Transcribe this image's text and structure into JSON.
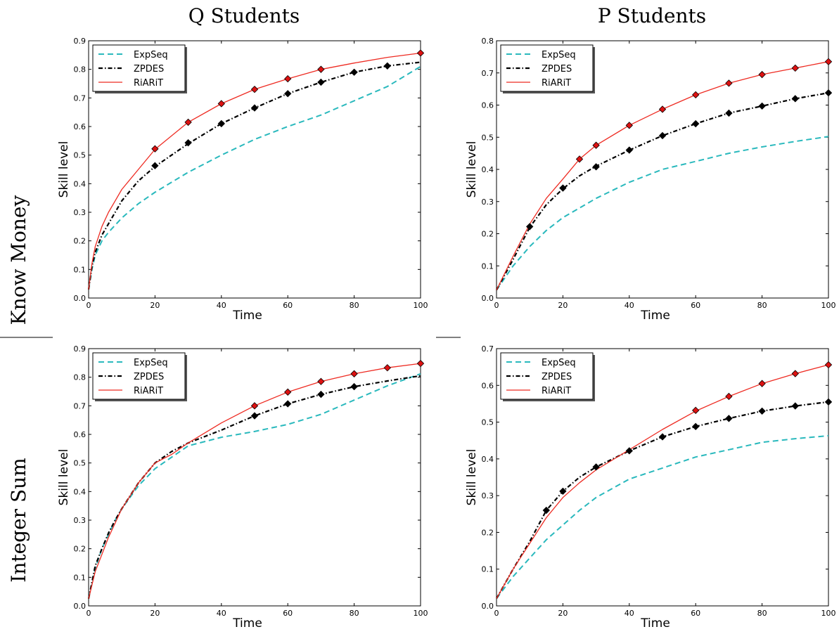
{
  "figure": {
    "column_titles": [
      "Q Students",
      "P Students"
    ],
    "row_titles": [
      "Know Money",
      "Integer Sum"
    ]
  },
  "colors": {
    "ExpSeq": "#2ab9bd",
    "ZPDES": "#000000",
    "RiARiT": "#ee2b22",
    "marker_RiARiT": "#dd1111",
    "marker_ZPDES": "#000000"
  },
  "chart_data": [
    {
      "type": "line",
      "column": "Q Students",
      "row": "Know Money",
      "xlabel": "Time",
      "ylabel": "Skill level",
      "xlim": [
        0,
        100
      ],
      "ylim": [
        0,
        0.9
      ],
      "xticks": [
        "0",
        "20",
        "40",
        "60",
        "80",
        "100"
      ],
      "yticks": [
        "0.0",
        "0.1",
        "0.2",
        "0.3",
        "0.4",
        "0.5",
        "0.6",
        "0.7",
        "0.8",
        "0.9"
      ],
      "legend_position": "top-left",
      "series": [
        {
          "name": "ExpSeq",
          "x": [
            0,
            1,
            2,
            4,
            6,
            8,
            10,
            15,
            20,
            30,
            40,
            50,
            60,
            70,
            80,
            90,
            100
          ],
          "y": [
            0.03,
            0.1,
            0.15,
            0.2,
            0.23,
            0.255,
            0.28,
            0.33,
            0.37,
            0.44,
            0.5,
            0.555,
            0.6,
            0.64,
            0.69,
            0.74,
            0.81
          ],
          "markers": []
        },
        {
          "name": "ZPDES",
          "x": [
            0,
            1,
            2,
            4,
            6,
            8,
            10,
            15,
            20,
            30,
            40,
            50,
            60,
            70,
            80,
            90,
            100
          ],
          "y": [
            0.03,
            0.11,
            0.16,
            0.22,
            0.26,
            0.3,
            0.34,
            0.41,
            0.46,
            0.54,
            0.61,
            0.665,
            0.715,
            0.755,
            0.79,
            0.812,
            0.825
          ],
          "markers": [
            [
              20,
              0.463
            ],
            [
              30,
              0.543
            ],
            [
              40,
              0.61
            ],
            [
              50,
              0.665
            ],
            [
              60,
              0.715
            ],
            [
              70,
              0.755
            ],
            [
              80,
              0.79
            ],
            [
              90,
              0.812
            ]
          ]
        },
        {
          "name": "RiARiT",
          "x": [
            0,
            1,
            2,
            4,
            6,
            8,
            10,
            15,
            20,
            30,
            40,
            50,
            60,
            70,
            80,
            90,
            100
          ],
          "y": [
            0.03,
            0.12,
            0.18,
            0.25,
            0.3,
            0.34,
            0.38,
            0.45,
            0.52,
            0.615,
            0.68,
            0.73,
            0.767,
            0.8,
            0.822,
            0.842,
            0.857
          ],
          "markers": [
            [
              20,
              0.522
            ],
            [
              30,
              0.615
            ],
            [
              40,
              0.68
            ],
            [
              50,
              0.73
            ],
            [
              60,
              0.767
            ],
            [
              70,
              0.8
            ],
            [
              100,
              0.857
            ]
          ]
        }
      ]
    },
    {
      "type": "line",
      "column": "P Students",
      "row": "Know Money",
      "xlabel": "Time",
      "ylabel": "Skill level",
      "xlim": [
        0,
        100
      ],
      "ylim": [
        0,
        0.8
      ],
      "xticks": [
        "0",
        "20",
        "40",
        "60",
        "80",
        "100"
      ],
      "yticks": [
        "0.0",
        "0.1",
        "0.2",
        "0.3",
        "0.4",
        "0.5",
        "0.6",
        "0.7",
        "0.8"
      ],
      "legend_position": "top-left",
      "series": [
        {
          "name": "ExpSeq",
          "x": [
            0,
            5,
            10,
            15,
            20,
            30,
            40,
            50,
            60,
            70,
            80,
            90,
            100
          ],
          "y": [
            0.025,
            0.1,
            0.16,
            0.21,
            0.25,
            0.31,
            0.36,
            0.4,
            0.425,
            0.45,
            0.47,
            0.487,
            0.502
          ],
          "markers": []
        },
        {
          "name": "ZPDES",
          "x": [
            0,
            5,
            10,
            15,
            20,
            25,
            30,
            40,
            50,
            60,
            70,
            80,
            90,
            100
          ],
          "y": [
            0.025,
            0.12,
            0.22,
            0.29,
            0.34,
            0.38,
            0.41,
            0.46,
            0.505,
            0.542,
            0.575,
            0.597,
            0.62,
            0.638
          ],
          "markers": [
            [
              10,
              0.222
            ],
            [
              20,
              0.342
            ],
            [
              30,
              0.408
            ],
            [
              40,
              0.46
            ],
            [
              50,
              0.505
            ],
            [
              60,
              0.542
            ],
            [
              70,
              0.575
            ],
            [
              80,
              0.597
            ],
            [
              90,
              0.62
            ],
            [
              100,
              0.638
            ]
          ]
        },
        {
          "name": "RiARiT",
          "x": [
            0,
            5,
            10,
            15,
            20,
            25,
            30,
            40,
            50,
            60,
            70,
            80,
            90,
            100
          ],
          "y": [
            0.025,
            0.13,
            0.23,
            0.31,
            0.37,
            0.432,
            0.475,
            0.537,
            0.587,
            0.632,
            0.668,
            0.695,
            0.715,
            0.735
          ],
          "markers": [
            [
              25,
              0.432
            ],
            [
              30,
              0.475
            ],
            [
              40,
              0.537
            ],
            [
              50,
              0.587
            ],
            [
              60,
              0.632
            ],
            [
              70,
              0.668
            ],
            [
              80,
              0.695
            ],
            [
              90,
              0.715
            ],
            [
              100,
              0.735
            ]
          ]
        }
      ]
    },
    {
      "type": "line",
      "column": "Q Students",
      "row": "Integer Sum",
      "xlabel": "Time",
      "ylabel": "Skill level",
      "xlim": [
        0,
        100
      ],
      "ylim": [
        0,
        0.9
      ],
      "xticks": [
        "0",
        "20",
        "40",
        "60",
        "80",
        "100"
      ],
      "yticks": [
        "0.0",
        "0.1",
        "0.2",
        "0.3",
        "0.4",
        "0.5",
        "0.6",
        "0.7",
        "0.8",
        "0.9"
      ],
      "legend_position": "top-left",
      "series": [
        {
          "name": "ExpSeq",
          "x": [
            0,
            2,
            4,
            6,
            8,
            10,
            15,
            20,
            25,
            30,
            40,
            50,
            60,
            70,
            80,
            90,
            100
          ],
          "y": [
            0.025,
            0.13,
            0.2,
            0.25,
            0.3,
            0.34,
            0.42,
            0.48,
            0.52,
            0.56,
            0.59,
            0.61,
            0.635,
            0.67,
            0.72,
            0.77,
            0.812
          ],
          "markers": []
        },
        {
          "name": "ZPDES",
          "x": [
            0,
            2,
            4,
            6,
            8,
            10,
            15,
            20,
            25,
            30,
            40,
            50,
            60,
            70,
            80,
            90,
            100
          ],
          "y": [
            0.025,
            0.14,
            0.2,
            0.255,
            0.3,
            0.34,
            0.43,
            0.5,
            0.54,
            0.57,
            0.615,
            0.665,
            0.707,
            0.74,
            0.767,
            0.787,
            0.805
          ],
          "markers": [
            [
              50,
              0.665
            ],
            [
              60,
              0.707
            ],
            [
              70,
              0.74
            ],
            [
              80,
              0.767
            ]
          ]
        },
        {
          "name": "RiARiT",
          "x": [
            0,
            2,
            4,
            6,
            8,
            10,
            15,
            20,
            25,
            30,
            40,
            50,
            60,
            70,
            80,
            90,
            100
          ],
          "y": [
            0.025,
            0.12,
            0.18,
            0.24,
            0.29,
            0.34,
            0.43,
            0.5,
            0.53,
            0.57,
            0.64,
            0.7,
            0.748,
            0.785,
            0.812,
            0.833,
            0.848
          ],
          "markers": [
            [
              50,
              0.7
            ],
            [
              60,
              0.748
            ],
            [
              70,
              0.785
            ],
            [
              80,
              0.812
            ],
            [
              90,
              0.833
            ],
            [
              100,
              0.848
            ]
          ]
        }
      ]
    },
    {
      "type": "line",
      "column": "P Students",
      "row": "Integer Sum",
      "xlabel": "Time",
      "ylabel": "Skill level",
      "xlim": [
        0,
        100
      ],
      "ylim": [
        0,
        0.7
      ],
      "xticks": [
        "0",
        "20",
        "40",
        "60",
        "80",
        "100"
      ],
      "yticks": [
        "0.0",
        "0.1",
        "0.2",
        "0.3",
        "0.4",
        "0.5",
        "0.6",
        "0.7"
      ],
      "legend_position": "top-left",
      "series": [
        {
          "name": "ExpSeq",
          "x": [
            0,
            5,
            10,
            15,
            20,
            25,
            30,
            40,
            50,
            60,
            70,
            80,
            90,
            100
          ],
          "y": [
            0.02,
            0.08,
            0.13,
            0.18,
            0.22,
            0.26,
            0.295,
            0.345,
            0.375,
            0.405,
            0.425,
            0.445,
            0.455,
            0.463
          ],
          "markers": []
        },
        {
          "name": "ZPDES",
          "x": [
            0,
            5,
            10,
            15,
            20,
            25,
            30,
            40,
            50,
            60,
            70,
            80,
            90,
            100
          ],
          "y": [
            0.02,
            0.1,
            0.175,
            0.26,
            0.312,
            0.35,
            0.378,
            0.422,
            0.46,
            0.488,
            0.51,
            0.53,
            0.544,
            0.555
          ],
          "markers": [
            [
              15,
              0.26
            ],
            [
              20,
              0.312
            ],
            [
              30,
              0.378
            ],
            [
              40,
              0.422
            ],
            [
              50,
              0.46
            ],
            [
              60,
              0.488
            ],
            [
              70,
              0.51
            ],
            [
              80,
              0.53
            ],
            [
              90,
              0.544
            ],
            [
              100,
              0.555
            ]
          ]
        },
        {
          "name": "RiARiT",
          "x": [
            0,
            5,
            10,
            15,
            20,
            25,
            30,
            40,
            50,
            60,
            70,
            80,
            90,
            100
          ],
          "y": [
            0.02,
            0.1,
            0.17,
            0.24,
            0.295,
            0.335,
            0.37,
            0.425,
            0.48,
            0.53,
            0.57,
            0.605,
            0.632,
            0.656
          ],
          "markers": [
            [
              60,
              0.532
            ],
            [
              70,
              0.57
            ],
            [
              80,
              0.605
            ],
            [
              90,
              0.632
            ],
            [
              100,
              0.656
            ]
          ]
        }
      ]
    }
  ]
}
